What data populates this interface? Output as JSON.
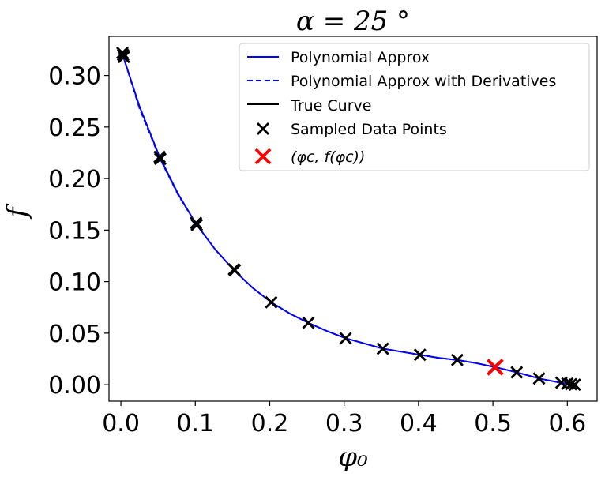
{
  "chart_data": {
    "type": "line",
    "title": "α = 25 °",
    "xlabel": "φ₀",
    "ylabel": "f",
    "xlim": [
      -0.016,
      0.64
    ],
    "ylim": [
      -0.016,
      0.338
    ],
    "xticks": [
      0.0,
      0.1,
      0.2,
      0.3,
      0.4,
      0.5,
      0.6
    ],
    "xtick_labels": [
      "0.0",
      "0.1",
      "0.2",
      "0.3",
      "0.4",
      "0.5",
      "0.6"
    ],
    "yticks": [
      0.0,
      0.05,
      0.1,
      0.15,
      0.2,
      0.25,
      0.3
    ],
    "ytick_labels": [
      "0.00",
      "0.05",
      "0.10",
      "0.15",
      "0.20",
      "0.25",
      "0.30"
    ],
    "grid": false,
    "legend_position": "upper-right",
    "series": [
      {
        "name": "Polynomial Approx",
        "style": "solid",
        "color": "#0000ff",
        "x": [
          0.002,
          0.025,
          0.052,
          0.077,
          0.101,
          0.127,
          0.152,
          0.177,
          0.202,
          0.227,
          0.252,
          0.277,
          0.302,
          0.327,
          0.352,
          0.377,
          0.402,
          0.427,
          0.452,
          0.477,
          0.503,
          0.532,
          0.562,
          0.59,
          0.605,
          0.61
        ],
        "y": [
          0.321,
          0.27,
          0.221,
          0.185,
          0.156,
          0.131,
          0.111,
          0.094,
          0.08,
          0.069,
          0.06,
          0.052,
          0.045,
          0.04,
          0.035,
          0.032,
          0.029,
          0.026,
          0.024,
          0.021,
          0.017,
          0.012,
          0.006,
          0.002,
          0.0005,
          0.0
        ]
      },
      {
        "name": "Polynomial Approx with Derivatives",
        "style": "dashed",
        "color": "#0000ff",
        "x": [
          0.002,
          0.025,
          0.052,
          0.077,
          0.101,
          0.127,
          0.152,
          0.177,
          0.202,
          0.227,
          0.252,
          0.277,
          0.302,
          0.327,
          0.352,
          0.377,
          0.402,
          0.427,
          0.452,
          0.477,
          0.503,
          0.532,
          0.562,
          0.59,
          0.605,
          0.61
        ],
        "y": [
          0.321,
          0.268,
          0.22,
          0.184,
          0.156,
          0.131,
          0.111,
          0.094,
          0.08,
          0.069,
          0.06,
          0.052,
          0.045,
          0.04,
          0.035,
          0.032,
          0.029,
          0.026,
          0.024,
          0.021,
          0.017,
          0.012,
          0.006,
          0.002,
          0.0005,
          0.0
        ]
      },
      {
        "name": "True Curve",
        "style": "solid",
        "color": "#000000",
        "x": [
          0.002,
          0.025,
          0.052,
          0.077,
          0.101,
          0.127,
          0.152,
          0.177,
          0.202,
          0.227,
          0.252,
          0.277,
          0.302,
          0.327,
          0.352,
          0.377,
          0.402,
          0.427,
          0.452,
          0.477,
          0.503,
          0.532,
          0.562,
          0.59,
          0.605,
          0.61
        ],
        "y": [
          0.321,
          0.27,
          0.221,
          0.185,
          0.156,
          0.131,
          0.111,
          0.094,
          0.08,
          0.069,
          0.06,
          0.052,
          0.045,
          0.04,
          0.035,
          0.032,
          0.029,
          0.026,
          0.024,
          0.021,
          0.017,
          0.012,
          0.006,
          0.002,
          0.0005,
          0.0
        ]
      }
    ],
    "sampled_points": {
      "name": "Sampled Data Points",
      "color": "#000000",
      "marker": "X",
      "x": [
        0.002,
        0.003,
        0.004,
        0.052,
        0.053,
        0.101,
        0.102,
        0.152,
        0.153,
        0.202,
        0.252,
        0.302,
        0.352,
        0.402,
        0.452,
        0.502,
        0.532,
        0.562,
        0.592,
        0.6,
        0.605,
        0.61
      ],
      "y": [
        0.322,
        0.32,
        0.318,
        0.221,
        0.219,
        0.157,
        0.155,
        0.112,
        0.111,
        0.08,
        0.06,
        0.045,
        0.035,
        0.029,
        0.024,
        0.017,
        0.012,
        0.006,
        0.002,
        0.001,
        0.0005,
        0.0
      ]
    },
    "critical_point": {
      "name": "(φc, f(φc))",
      "color": "#ff0000",
      "marker": "X",
      "x": 0.503,
      "y": 0.017
    },
    "legend_entries": [
      "Polynomial Approx",
      "Polynomial Approx with Derivatives",
      "True Curve",
      "Sampled Data Points",
      "(φc, f(φc))"
    ]
  }
}
